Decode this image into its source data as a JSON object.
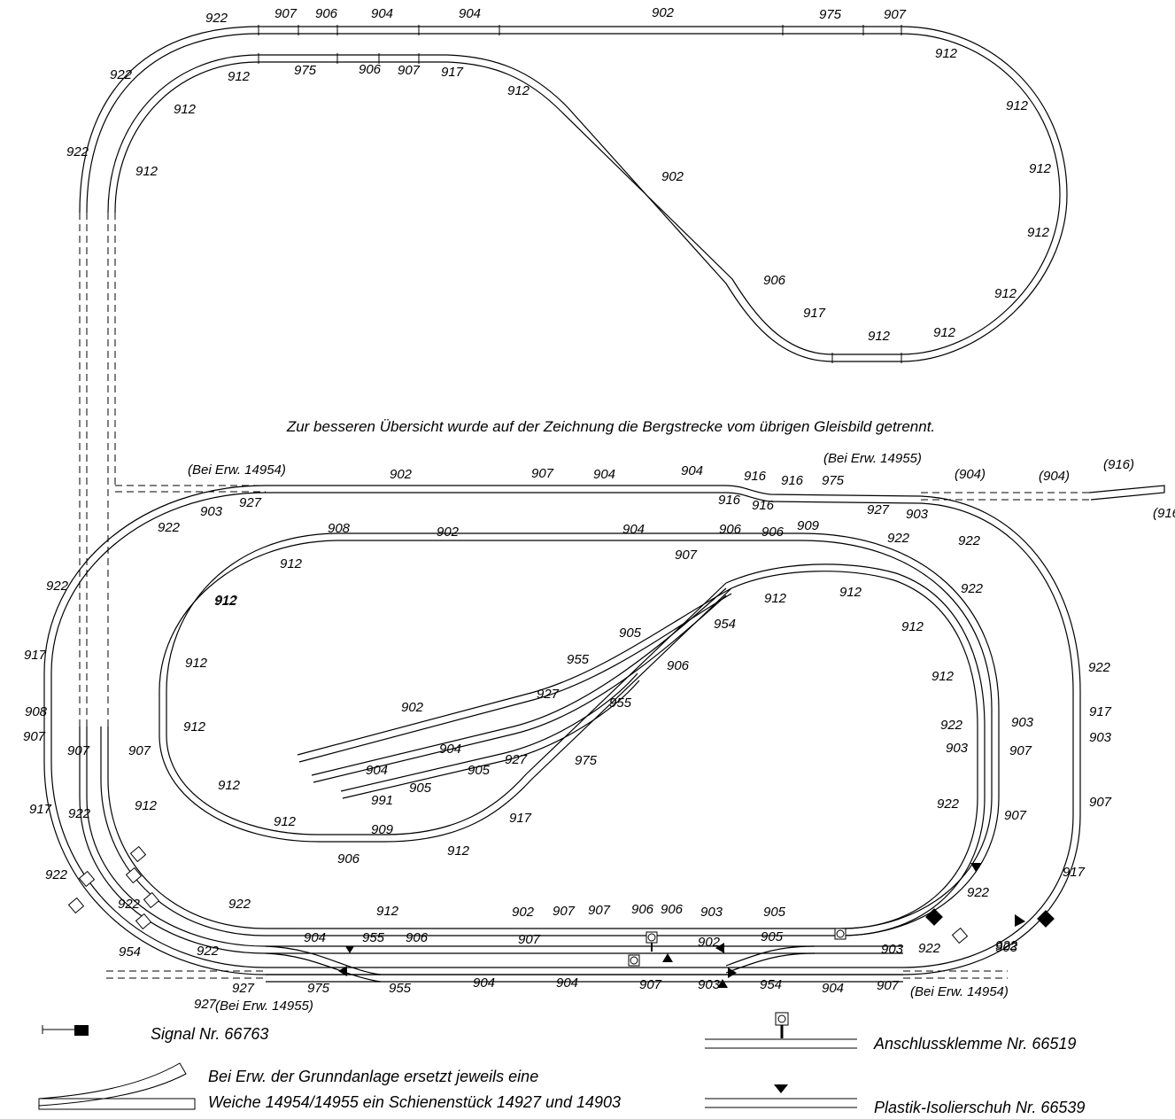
{
  "note": "Zur besseren Übersicht wurde auf der Zeichnung die Bergstrecke vom übrigen Gleisbild getrennt.",
  "legend": {
    "signal": "Signal Nr. 66763",
    "anschluss": "Anschlussklemme Nr. 66519",
    "isolier": "Plastik-Isolierschuh Nr. 66539",
    "ersatz_line1": "Bei Erw. der Grunndanlage ersetzt jeweils eine",
    "ersatz_line2": "Weiche 14954/14955 ein Schienenstück 14927 und 14903"
  },
  "annotations": {
    "erw_14954_top": "(Bei Erw. 14954)",
    "erw_14955_top": "(Bei Erw. 14955)",
    "erw_14955_bottom": "(Bei Erw. 14955)",
    "erw_14954_bottom": "(Bei Erw. 14954)"
  },
  "track_labels": [
    "922",
    "907",
    "906",
    "904",
    "904",
    "902",
    "975",
    "907",
    "922",
    "912",
    "975",
    "906",
    "907",
    "917",
    "912",
    "922",
    "912",
    "912",
    "902",
    "912",
    "912",
    "912",
    "912",
    "912",
    "906",
    "917",
    "912",
    "912",
    "912",
    "902",
    "907",
    "904",
    "904",
    "916",
    "916",
    "916",
    "916",
    "975",
    "927",
    "903",
    "(904)",
    "(904)",
    "(916)",
    "(916)",
    "903",
    "927",
    "922",
    "922",
    "922",
    "922",
    "922",
    "908",
    "902",
    "904",
    "907",
    "906",
    "906",
    "909",
    "912",
    "912",
    "912",
    "912",
    "912",
    "912",
    "905",
    "954",
    "955",
    "906",
    "902",
    "927",
    "955",
    "904",
    "904",
    "927",
    "905",
    "905",
    "975",
    "991",
    "917",
    "912",
    "909",
    "906",
    "912",
    "912",
    "912",
    "912",
    "912",
    "912",
    "917",
    "908",
    "907",
    "907",
    "907",
    "917",
    "922",
    "922",
    "922",
    "922",
    "903",
    "903",
    "907",
    "907",
    "922",
    "917",
    "903",
    "907",
    "917",
    "922",
    "922",
    "922",
    "912",
    "902",
    "907",
    "907",
    "906",
    "906",
    "903",
    "905",
    "904",
    "955",
    "906",
    "907",
    "902",
    "905",
    "954",
    "922",
    "927",
    "975",
    "955",
    "904",
    "904",
    "907",
    "903",
    "954",
    "904",
    "907",
    "927",
    "903",
    "922",
    "903",
    "922"
  ]
}
